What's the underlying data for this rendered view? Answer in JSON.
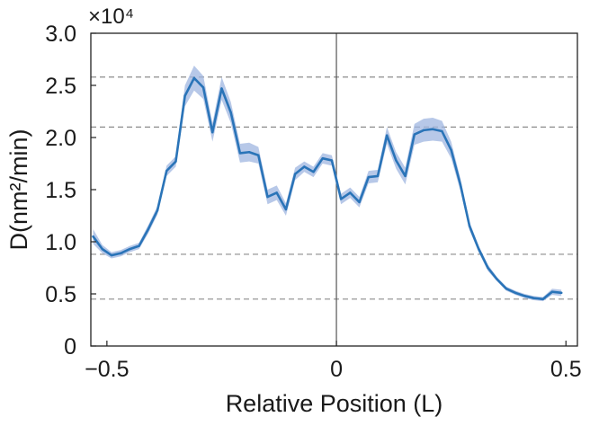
{
  "chart_data": {
    "type": "line",
    "title": "",
    "xlabel": "Relative Position (L)",
    "ylabel": "D(nm²/min)",
    "y_scale_factor": "×10⁴",
    "x_ticks": [
      {
        "value": -0.5,
        "label": "−0.5"
      },
      {
        "value": 0,
        "label": "0"
      },
      {
        "value": 0.5,
        "label": "0.5"
      }
    ],
    "y_ticks": [
      {
        "value": 0,
        "label": "0"
      },
      {
        "value": 0.5,
        "label": "0.5"
      },
      {
        "value": 1.0,
        "label": "1.0"
      },
      {
        "value": 1.5,
        "label": "1.5"
      },
      {
        "value": 2.0,
        "label": "2.0"
      },
      {
        "value": 2.5,
        "label": "2.5"
      },
      {
        "value": 3.0,
        "label": "3.0"
      }
    ],
    "xlim": [
      -0.535,
      0.525
    ],
    "ylim": [
      0,
      3.0
    ],
    "reference_lines": {
      "horizontal_dashed_y": [
        0.45,
        0.88,
        2.1,
        2.58
      ],
      "vertical_solid_x": 0
    },
    "grid": false,
    "legend": "none",
    "series": [
      {
        "color": "#2a74b8",
        "band_color": "#9fb6e0",
        "points": [
          {
            "x": -0.53,
            "y": 1.05,
            "err": 0.07
          },
          {
            "x": -0.51,
            "y": 0.93,
            "err": 0.04
          },
          {
            "x": -0.49,
            "y": 0.87,
            "err": 0.03
          },
          {
            "x": -0.47,
            "y": 0.89,
            "err": 0.03
          },
          {
            "x": -0.45,
            "y": 0.93,
            "err": 0.03
          },
          {
            "x": -0.43,
            "y": 0.96,
            "err": 0.03
          },
          {
            "x": -0.41,
            "y": 1.12,
            "err": 0.04
          },
          {
            "x": -0.39,
            "y": 1.3,
            "err": 0.04
          },
          {
            "x": -0.37,
            "y": 1.68,
            "err": 0.05
          },
          {
            "x": -0.35,
            "y": 1.77,
            "err": 0.05
          },
          {
            "x": -0.33,
            "y": 2.4,
            "err": 0.1
          },
          {
            "x": -0.31,
            "y": 2.57,
            "err": 0.12
          },
          {
            "x": -0.29,
            "y": 2.48,
            "err": 0.11
          },
          {
            "x": -0.27,
            "y": 2.05,
            "err": 0.09
          },
          {
            "x": -0.25,
            "y": 2.47,
            "err": 0.11
          },
          {
            "x": -0.23,
            "y": 2.24,
            "err": 0.1
          },
          {
            "x": -0.21,
            "y": 1.85,
            "err": 0.09
          },
          {
            "x": -0.19,
            "y": 1.86,
            "err": 0.09
          },
          {
            "x": -0.17,
            "y": 1.83,
            "err": 0.08
          },
          {
            "x": -0.15,
            "y": 1.43,
            "err": 0.07
          },
          {
            "x": -0.13,
            "y": 1.47,
            "err": 0.07
          },
          {
            "x": -0.11,
            "y": 1.31,
            "err": 0.06
          },
          {
            "x": -0.09,
            "y": 1.65,
            "err": 0.06
          },
          {
            "x": -0.07,
            "y": 1.72,
            "err": 0.05
          },
          {
            "x": -0.05,
            "y": 1.67,
            "err": 0.05
          },
          {
            "x": -0.03,
            "y": 1.8,
            "err": 0.05
          },
          {
            "x": -0.01,
            "y": 1.78,
            "err": 0.05
          },
          {
            "x": 0.01,
            "y": 1.41,
            "err": 0.05
          },
          {
            "x": 0.03,
            "y": 1.47,
            "err": 0.05
          },
          {
            "x": 0.05,
            "y": 1.38,
            "err": 0.05
          },
          {
            "x": 0.07,
            "y": 1.62,
            "err": 0.06
          },
          {
            "x": 0.09,
            "y": 1.63,
            "err": 0.06
          },
          {
            "x": 0.11,
            "y": 2.02,
            "err": 0.08
          },
          {
            "x": 0.13,
            "y": 1.78,
            "err": 0.08
          },
          {
            "x": 0.15,
            "y": 1.63,
            "err": 0.08
          },
          {
            "x": 0.17,
            "y": 2.03,
            "err": 0.1
          },
          {
            "x": 0.19,
            "y": 2.07,
            "err": 0.11
          },
          {
            "x": 0.21,
            "y": 2.08,
            "err": 0.11
          },
          {
            "x": 0.23,
            "y": 2.06,
            "err": 0.1
          },
          {
            "x": 0.25,
            "y": 1.88,
            "err": 0.08
          },
          {
            "x": 0.27,
            "y": 1.55,
            "err": 0.06
          },
          {
            "x": 0.29,
            "y": 1.15,
            "err": 0.04
          },
          {
            "x": 0.31,
            "y": 0.93,
            "err": 0.03
          },
          {
            "x": 0.33,
            "y": 0.75,
            "err": 0.03
          },
          {
            "x": 0.35,
            "y": 0.64,
            "err": 0.02
          },
          {
            "x": 0.37,
            "y": 0.55,
            "err": 0.02
          },
          {
            "x": 0.39,
            "y": 0.51,
            "err": 0.02
          },
          {
            "x": 0.41,
            "y": 0.48,
            "err": 0.02
          },
          {
            "x": 0.43,
            "y": 0.46,
            "err": 0.02
          },
          {
            "x": 0.45,
            "y": 0.45,
            "err": 0.02
          },
          {
            "x": 0.47,
            "y": 0.52,
            "err": 0.03
          },
          {
            "x": 0.49,
            "y": 0.51,
            "err": 0.03
          }
        ]
      }
    ]
  }
}
